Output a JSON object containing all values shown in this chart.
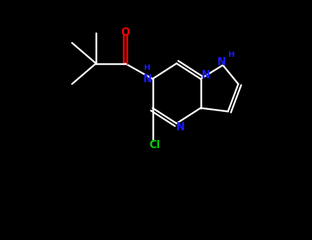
{
  "bg_color": "#000000",
  "bond_color": "#ffffff",
  "n_color": "#1a1aff",
  "o_color": "#ff0000",
  "cl_color": "#00cc00",
  "lw": 1.8,
  "figsize": [
    4.55,
    3.5
  ],
  "dpi": 100,
  "xlim": [
    0,
    9.1
  ],
  "ylim": [
    0,
    7.0
  ],
  "fs": 11
}
